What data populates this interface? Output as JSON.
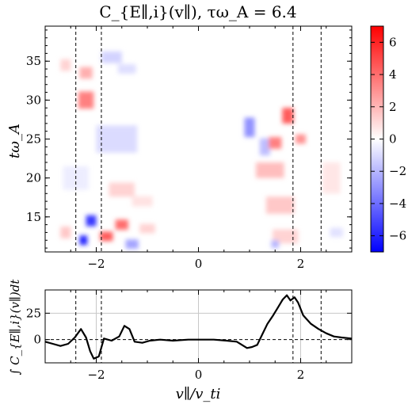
{
  "chart_data": [
    {
      "type": "heatmap",
      "title": "C_{E∥,i}(v∥), τω_A = 6.4",
      "xlabel": "",
      "ylabel": "tω_A",
      "xlim": [
        -3,
        3
      ],
      "ylim": [
        10.5,
        39.5
      ],
      "xticks": [
        -2,
        0,
        2
      ],
      "yticks": [
        15,
        20,
        25,
        30,
        35
      ],
      "colorbar": {
        "min": -7,
        "max": 7,
        "ticks": [
          -6,
          -4,
          -2,
          0,
          2,
          4,
          6
        ],
        "colormap": "bwr"
      },
      "vlines": [
        -2.4,
        -1.9,
        1.85,
        2.4
      ],
      "blobs": [
        {
          "v": -2.2,
          "t": 30.0,
          "w": 0.3,
          "h": 2.2,
          "value": 3.5
        },
        {
          "v": -2.2,
          "t": 33.5,
          "w": 0.25,
          "h": 1.5,
          "value": 2.2
        },
        {
          "v": -2.6,
          "t": 34.5,
          "w": 0.2,
          "h": 1.5,
          "value": 1.2
        },
        {
          "v": -1.7,
          "t": 35.5,
          "w": 0.4,
          "h": 1.5,
          "value": -1.2
        },
        {
          "v": -1.4,
          "t": 34.0,
          "w": 0.35,
          "h": 1.2,
          "value": -0.9
        },
        {
          "v": -1.6,
          "t": 25.0,
          "w": 0.8,
          "h": 3.5,
          "value": -1.0
        },
        {
          "v": -1.5,
          "t": 18.5,
          "w": 0.5,
          "h": 1.8,
          "value": 1.2
        },
        {
          "v": -1.1,
          "t": 17.0,
          "w": 0.4,
          "h": 1.3,
          "value": 0.8
        },
        {
          "v": -2.4,
          "t": 20.0,
          "w": 0.5,
          "h": 3.0,
          "value": -0.5
        },
        {
          "v": -2.1,
          "t": 14.5,
          "w": 0.2,
          "h": 1.4,
          "value": -5.5
        },
        {
          "v": -2.25,
          "t": 12.0,
          "w": 0.15,
          "h": 1.2,
          "value": -6.0
        },
        {
          "v": -1.8,
          "t": 12.5,
          "w": 0.25,
          "h": 1.2,
          "value": 4.5
        },
        {
          "v": -1.5,
          "t": 14.0,
          "w": 0.25,
          "h": 1.3,
          "value": 4.0
        },
        {
          "v": -1.3,
          "t": 11.5,
          "w": 0.25,
          "h": 1.2,
          "value": -2.5
        },
        {
          "v": -2.6,
          "t": 13.0,
          "w": 0.2,
          "h": 1.5,
          "value": 1.5
        },
        {
          "v": -1.0,
          "t": 13.5,
          "w": 0.3,
          "h": 1.2,
          "value": 1.2
        },
        {
          "v": 1.0,
          "t": 26.5,
          "w": 0.2,
          "h": 2.5,
          "value": -3.0
        },
        {
          "v": 1.3,
          "t": 24.0,
          "w": 0.2,
          "h": 2.2,
          "value": -1.8
        },
        {
          "v": 1.75,
          "t": 28.0,
          "w": 0.22,
          "h": 2.0,
          "value": 4.5
        },
        {
          "v": 1.5,
          "t": 24.5,
          "w": 0.25,
          "h": 1.5,
          "value": 3.5
        },
        {
          "v": 2.0,
          "t": 25.0,
          "w": 0.2,
          "h": 1.2,
          "value": 3.0
        },
        {
          "v": 1.4,
          "t": 21.0,
          "w": 0.55,
          "h": 2.0,
          "value": 1.8
        },
        {
          "v": 1.6,
          "t": 16.5,
          "w": 0.55,
          "h": 2.2,
          "value": 1.5
        },
        {
          "v": 1.7,
          "t": 12.5,
          "w": 0.5,
          "h": 1.8,
          "value": 1.2
        },
        {
          "v": 1.5,
          "t": 11.5,
          "w": 0.15,
          "h": 1.0,
          "value": -2.0
        },
        {
          "v": 2.6,
          "t": 20.0,
          "w": 0.35,
          "h": 4.0,
          "value": 0.7
        },
        {
          "v": 2.7,
          "t": 13.0,
          "w": 0.25,
          "h": 1.2,
          "value": -0.8
        }
      ]
    },
    {
      "type": "line",
      "title": "",
      "xlabel": "v∥/v_ti",
      "ylabel": "∫ C_{E∥,i}(v∥)dt",
      "xlim": [
        -3,
        3
      ],
      "ylim": [
        -22,
        47
      ],
      "xticks": [
        -2,
        0,
        2
      ],
      "yticks": [
        0,
        25
      ],
      "grid": true,
      "hline": 0,
      "vlines": [
        -2.4,
        -1.9,
        1.85,
        2.4
      ],
      "x": [
        -3.0,
        -2.85,
        -2.7,
        -2.55,
        -2.42,
        -2.3,
        -2.2,
        -2.12,
        -2.05,
        -1.95,
        -1.85,
        -1.7,
        -1.55,
        -1.45,
        -1.35,
        -1.25,
        -1.1,
        -0.95,
        -0.75,
        -0.5,
        -0.2,
        0.0,
        0.3,
        0.55,
        0.75,
        0.95,
        1.05,
        1.15,
        1.25,
        1.35,
        1.45,
        1.55,
        1.65,
        1.73,
        1.8,
        1.88,
        1.95,
        2.05,
        2.2,
        2.35,
        2.5,
        2.65,
        2.8,
        3.0
      ],
      "values": [
        -2,
        -4,
        -6,
        -4,
        2,
        10,
        2,
        -11,
        -18,
        -16,
        1,
        -1,
        3,
        13,
        10,
        -2,
        -3,
        -1,
        0,
        -1,
        0,
        0,
        0,
        -1,
        -2,
        -8,
        -7,
        -5,
        5,
        15,
        22,
        30,
        38,
        42,
        37,
        40,
        35,
        23,
        15,
        10,
        6,
        3,
        2,
        1
      ]
    }
  ]
}
